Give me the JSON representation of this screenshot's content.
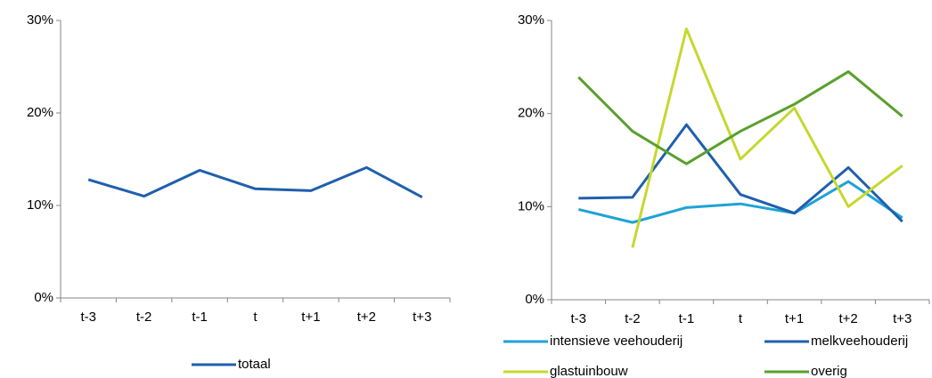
{
  "chart_data": [
    {
      "type": "line",
      "categories": [
        "t-3",
        "t-2",
        "t-1",
        "t",
        "t+1",
        "t+2",
        "t+3"
      ],
      "series": [
        {
          "name": "totaal",
          "color": "#1f5fad",
          "values": [
            12.8,
            11.0,
            13.8,
            11.8,
            11.6,
            14.1,
            10.9
          ]
        }
      ],
      "ylim": [
        0,
        30
      ],
      "yticks": [
        {
          "value": 0,
          "label": "0%"
        },
        {
          "value": 10,
          "label": "10%"
        },
        {
          "value": 20,
          "label": "20%"
        },
        {
          "value": 30,
          "label": "30%"
        }
      ],
      "grid": false
    },
    {
      "type": "line",
      "categories": [
        "t-3",
        "t-2",
        "t-1",
        "t",
        "t+1",
        "t+2",
        "t+3"
      ],
      "series": [
        {
          "name": "intensieve veehouderij",
          "color": "#1fa3d6",
          "values": [
            9.7,
            8.3,
            9.9,
            10.3,
            9.3,
            12.7,
            8.8
          ]
        },
        {
          "name": "melkveehouderij",
          "color": "#1f5fad",
          "values": [
            10.9,
            11.0,
            18.8,
            11.3,
            9.3,
            14.2,
            8.4
          ]
        },
        {
          "name": "glastuinbouw",
          "color": "#c5d82e",
          "values": [
            null,
            5.6,
            29.1,
            15.1,
            20.6,
            10.0,
            14.4
          ]
        },
        {
          "name": "overig",
          "color": "#5aa02c",
          "values": [
            23.9,
            18.1,
            14.6,
            18.1,
            21.0,
            24.5,
            19.7
          ]
        }
      ],
      "ylim": [
        0,
        30
      ],
      "yticks": [
        {
          "value": 0,
          "label": "0%"
        },
        {
          "value": 10,
          "label": "10%"
        },
        {
          "value": 20,
          "label": "20%"
        },
        {
          "value": 30,
          "label": "30%"
        }
      ],
      "grid": false
    }
  ]
}
